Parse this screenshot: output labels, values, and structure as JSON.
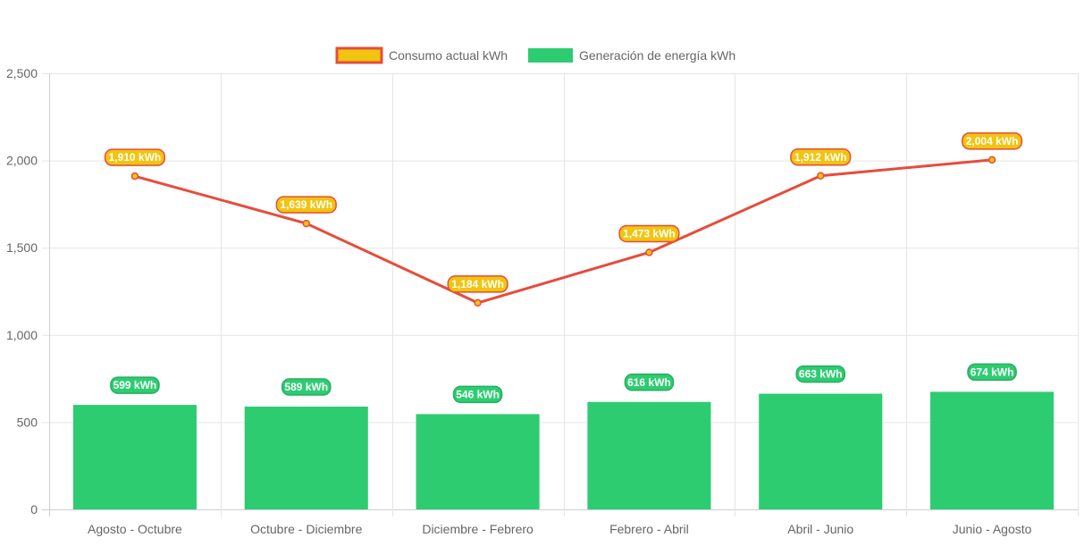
{
  "chart_data": {
    "type": "bar",
    "title": "",
    "xlabel": "",
    "ylabel": "",
    "ylim": [
      0,
      2500
    ],
    "yticks": [
      0,
      500,
      1000,
      1500,
      2000,
      2500
    ],
    "ytick_labels": [
      "0",
      "500",
      "1,000",
      "1,500",
      "2,000",
      "2,500"
    ],
    "grid": true,
    "legend_position": "top-center",
    "categories": [
      "Agosto - Octubre",
      "Octubre - Diciembre",
      "Diciembre - Febrero",
      "Febrero - Abril",
      "Abril - Junio",
      "Junio - Agosto"
    ],
    "series": [
      {
        "name": "Consumo actual kWh",
        "type": "line",
        "color": "#e74c3c",
        "fill": "#f1c40f",
        "values": [
          1910,
          1639,
          1184,
          1473,
          1912,
          2004
        ],
        "labels": [
          "1,910 kWh",
          "1,639 kWh",
          "1,184 kWh",
          "1,473 kWh",
          "1,912 kWh",
          "2,004 kWh"
        ]
      },
      {
        "name": "Generación de energía kWh",
        "type": "bar",
        "color": "#2ecc71",
        "values": [
          599,
          589,
          546,
          616,
          663,
          674
        ],
        "labels": [
          "599 kWh",
          "589 kWh",
          "546 kWh",
          "616 kWh",
          "663 kWh",
          "674 kWh"
        ]
      }
    ]
  }
}
